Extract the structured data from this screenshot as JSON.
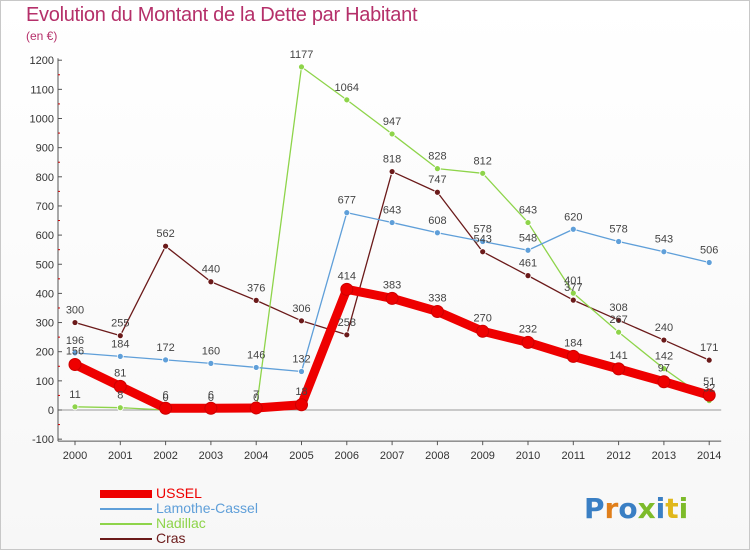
{
  "title": "Evolution du Montant de la Dette par Habitant",
  "unit": "(en €)",
  "logo": {
    "text": "Proxiti",
    "colors": [
      "#3a7fc4",
      "#e07f1b",
      "#3a7fc4",
      "#7dbb2a",
      "#3a7fc4",
      "#e0b81b",
      "#7dbb2a"
    ]
  },
  "chart_data": {
    "type": "line",
    "x": [
      2000,
      2001,
      2002,
      2003,
      2004,
      2005,
      2006,
      2007,
      2008,
      2009,
      2010,
      2011,
      2012,
      2013,
      2014
    ],
    "ylim": [
      -100,
      1200
    ],
    "yticks": [
      -100,
      0,
      100,
      200,
      300,
      400,
      500,
      600,
      700,
      800,
      900,
      1000,
      1100,
      1200
    ],
    "grid": false,
    "legend_position": "bottom-left",
    "series": [
      {
        "name": "Cras",
        "color": "#6b1a1a",
        "values": [
          300,
          255,
          562,
          440,
          376,
          306,
          258,
          818,
          747,
          543,
          461,
          377,
          308,
          240,
          171
        ],
        "labels": [
          "300",
          "255",
          "562",
          "440",
          "376",
          "306",
          "258",
          "818",
          "747",
          "543",
          "461",
          "377",
          "308",
          "240",
          "171"
        ]
      },
      {
        "name": "Nadillac",
        "color": "#8ed44a",
        "values": [
          11,
          8,
          0,
          0,
          0,
          1177,
          1064,
          947,
          828,
          812,
          643,
          401,
          267,
          142,
          32
        ],
        "labels": [
          "11",
          "8",
          "0",
          "0",
          "0",
          "1177",
          "1064",
          "947",
          "828",
          "812",
          "643",
          "401",
          "267",
          "142",
          "32"
        ]
      },
      {
        "name": "Lamothe-Cassel",
        "color": "#5f9fd9",
        "values": [
          196,
          184,
          172,
          160,
          146,
          132,
          677,
          643,
          608,
          578,
          548,
          620,
          578,
          543,
          506
        ],
        "labels": [
          "196",
          "184",
          "172",
          "160",
          "146",
          "132",
          "677",
          "643",
          "608",
          "578",
          "548",
          "620",
          "578",
          "543",
          "506"
        ]
      },
      {
        "name": "USSEL",
        "color": "#ee0000",
        "values": [
          156,
          81,
          6,
          6,
          7,
          18,
          414,
          383,
          338,
          270,
          232,
          184,
          141,
          97,
          51
        ],
        "labels": [
          "156",
          "81",
          "6",
          "6",
          "7",
          "18",
          "414",
          "383",
          "338",
          "270",
          "232",
          "184",
          "141",
          "97",
          "51"
        ]
      }
    ],
    "legend_order": [
      "USSEL",
      "Lamothe-Cassel",
      "Nadillac",
      "Cras"
    ]
  }
}
